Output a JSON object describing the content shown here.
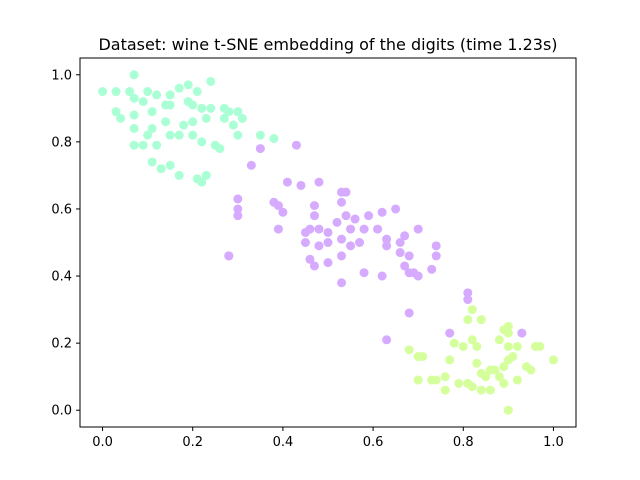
{
  "chart_data": {
    "type": "scatter",
    "title": "Dataset: wine t-SNE embedding of the digits (time 1.23s)",
    "xlabel": "",
    "ylabel": "",
    "xlim": [
      -0.05,
      1.05
    ],
    "ylim": [
      -0.05,
      1.05
    ],
    "xticks": [
      "0.0",
      "0.2",
      "0.4",
      "0.6",
      "0.8",
      "1.0"
    ],
    "yticks": [
      "0.0",
      "0.2",
      "0.4",
      "0.6",
      "0.8",
      "1.0"
    ],
    "grid": false,
    "legend": "none",
    "series": [
      {
        "color": "#aaffd5",
        "points": [
          [
            0.0,
            0.95
          ],
          [
            0.03,
            0.95
          ],
          [
            0.07,
            1.0
          ],
          [
            0.06,
            0.95
          ],
          [
            0.07,
            0.93
          ],
          [
            0.09,
            0.92
          ],
          [
            0.1,
            0.95
          ],
          [
            0.12,
            0.94
          ],
          [
            0.15,
            0.94
          ],
          [
            0.17,
            0.96
          ],
          [
            0.19,
            0.97
          ],
          [
            0.21,
            0.95
          ],
          [
            0.24,
            0.98
          ],
          [
            0.03,
            0.89
          ],
          [
            0.04,
            0.87
          ],
          [
            0.07,
            0.88
          ],
          [
            0.11,
            0.89
          ],
          [
            0.14,
            0.91
          ],
          [
            0.15,
            0.91
          ],
          [
            0.19,
            0.92
          ],
          [
            0.2,
            0.91
          ],
          [
            0.22,
            0.9
          ],
          [
            0.24,
            0.9
          ],
          [
            0.27,
            0.9
          ],
          [
            0.28,
            0.89
          ],
          [
            0.3,
            0.89
          ],
          [
            0.07,
            0.84
          ],
          [
            0.1,
            0.82
          ],
          [
            0.11,
            0.84
          ],
          [
            0.14,
            0.86
          ],
          [
            0.18,
            0.85
          ],
          [
            0.2,
            0.86
          ],
          [
            0.23,
            0.87
          ],
          [
            0.27,
            0.87
          ],
          [
            0.29,
            0.85
          ],
          [
            0.31,
            0.87
          ],
          [
            0.07,
            0.79
          ],
          [
            0.09,
            0.79
          ],
          [
            0.12,
            0.79
          ],
          [
            0.15,
            0.82
          ],
          [
            0.17,
            0.82
          ],
          [
            0.2,
            0.82
          ],
          [
            0.22,
            0.8
          ],
          [
            0.25,
            0.79
          ],
          [
            0.26,
            0.78
          ],
          [
            0.3,
            0.82
          ],
          [
            0.35,
            0.82
          ],
          [
            0.38,
            0.81
          ],
          [
            0.11,
            0.74
          ],
          [
            0.13,
            0.72
          ],
          [
            0.15,
            0.73
          ],
          [
            0.17,
            0.7
          ],
          [
            0.21,
            0.69
          ],
          [
            0.22,
            0.68
          ],
          [
            0.23,
            0.7
          ]
        ]
      },
      {
        "color": "#d5aaff",
        "points": [
          [
            0.35,
            0.78
          ],
          [
            0.33,
            0.73
          ],
          [
            0.43,
            0.79
          ],
          [
            0.41,
            0.68
          ],
          [
            0.44,
            0.67
          ],
          [
            0.48,
            0.68
          ],
          [
            0.3,
            0.63
          ],
          [
            0.3,
            0.6
          ],
          [
            0.3,
            0.58
          ],
          [
            0.38,
            0.62
          ],
          [
            0.39,
            0.61
          ],
          [
            0.4,
            0.59
          ],
          [
            0.47,
            0.61
          ],
          [
            0.47,
            0.58
          ],
          [
            0.53,
            0.65
          ],
          [
            0.54,
            0.65
          ],
          [
            0.53,
            0.62
          ],
          [
            0.54,
            0.58
          ],
          [
            0.56,
            0.57
          ],
          [
            0.59,
            0.58
          ],
          [
            0.62,
            0.59
          ],
          [
            0.65,
            0.6
          ],
          [
            0.39,
            0.54
          ],
          [
            0.45,
            0.53
          ],
          [
            0.46,
            0.54
          ],
          [
            0.48,
            0.54
          ],
          [
            0.5,
            0.53
          ],
          [
            0.52,
            0.56
          ],
          [
            0.55,
            0.54
          ],
          [
            0.58,
            0.54
          ],
          [
            0.61,
            0.54
          ],
          [
            0.63,
            0.51
          ],
          [
            0.66,
            0.5
          ],
          [
            0.67,
            0.52
          ],
          [
            0.7,
            0.54
          ],
          [
            0.45,
            0.5
          ],
          [
            0.48,
            0.49
          ],
          [
            0.5,
            0.5
          ],
          [
            0.53,
            0.51
          ],
          [
            0.55,
            0.49
          ],
          [
            0.57,
            0.5
          ],
          [
            0.63,
            0.49
          ],
          [
            0.66,
            0.47
          ],
          [
            0.68,
            0.46
          ],
          [
            0.74,
            0.49
          ],
          [
            0.74,
            0.46
          ],
          [
            0.46,
            0.45
          ],
          [
            0.47,
            0.43
          ],
          [
            0.5,
            0.44
          ],
          [
            0.53,
            0.46
          ],
          [
            0.58,
            0.41
          ],
          [
            0.62,
            0.4
          ],
          [
            0.67,
            0.43
          ],
          [
            0.68,
            0.41
          ],
          [
            0.69,
            0.41
          ],
          [
            0.7,
            0.4
          ],
          [
            0.73,
            0.42
          ],
          [
            0.28,
            0.46
          ],
          [
            0.28,
            0.46
          ],
          [
            0.53,
            0.38
          ],
          [
            0.81,
            0.35
          ],
          [
            0.81,
            0.33
          ],
          [
            0.68,
            0.29
          ],
          [
            0.63,
            0.21
          ],
          [
            0.77,
            0.23
          ],
          [
            0.93,
            0.23
          ]
        ]
      },
      {
        "color": "#d5ff9c",
        "points": [
          [
            0.82,
            0.3
          ],
          [
            0.81,
            0.27
          ],
          [
            0.84,
            0.27
          ],
          [
            0.89,
            0.24
          ],
          [
            0.9,
            0.25
          ],
          [
            0.9,
            0.23
          ],
          [
            0.82,
            0.21
          ],
          [
            0.8,
            0.19
          ],
          [
            0.83,
            0.19
          ],
          [
            0.88,
            0.21
          ],
          [
            0.9,
            0.19
          ],
          [
            0.92,
            0.19
          ],
          [
            0.96,
            0.19
          ],
          [
            0.97,
            0.19
          ],
          [
            0.78,
            0.2
          ],
          [
            0.68,
            0.18
          ],
          [
            0.7,
            0.16
          ],
          [
            0.71,
            0.16
          ],
          [
            0.77,
            0.15
          ],
          [
            0.83,
            0.14
          ],
          [
            0.87,
            0.12
          ],
          [
            0.9,
            0.15
          ],
          [
            0.91,
            0.16
          ],
          [
            0.94,
            0.13
          ],
          [
            0.95,
            0.12
          ],
          [
            1.0,
            0.15
          ],
          [
            0.84,
            0.11
          ],
          [
            0.85,
            0.1
          ],
          [
            0.86,
            0.12
          ],
          [
            0.88,
            0.1
          ],
          [
            0.89,
            0.13
          ],
          [
            0.7,
            0.09
          ],
          [
            0.73,
            0.09
          ],
          [
            0.74,
            0.09
          ],
          [
            0.76,
            0.1
          ],
          [
            0.79,
            0.08
          ],
          [
            0.81,
            0.08
          ],
          [
            0.82,
            0.07
          ],
          [
            0.84,
            0.06
          ],
          [
            0.86,
            0.06
          ],
          [
            0.89,
            0.08
          ],
          [
            0.92,
            0.09
          ],
          [
            0.76,
            0.06
          ],
          [
            0.9,
            0.0
          ]
        ]
      }
    ]
  }
}
